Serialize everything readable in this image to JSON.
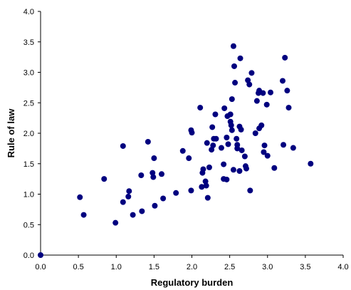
{
  "chart_data": {
    "type": "scatter",
    "title": "",
    "xlabel": "Regulatory burden",
    "ylabel": "Rule of law",
    "xlim": [
      0,
      4
    ],
    "ylim": [
      0,
      4
    ],
    "xticks": [
      "0.0",
      "0.5",
      "1.0",
      "1.5",
      "2.0",
      "2.5",
      "3.0",
      "3.5",
      "4.0"
    ],
    "yticks": [
      "0.0",
      "0.5",
      "1.0",
      "1.5",
      "2.0",
      "2.5",
      "3.0",
      "3.5",
      "4.0"
    ],
    "grid": false,
    "legend": "none",
    "marker_color": "#00007F",
    "points": [
      [
        0.0,
        0.0
      ],
      [
        0.52,
        0.95
      ],
      [
        0.57,
        0.66
      ],
      [
        0.84,
        1.25
      ],
      [
        0.99,
        0.53
      ],
      [
        1.09,
        1.79
      ],
      [
        1.09,
        0.87
      ],
      [
        1.16,
        0.96
      ],
      [
        1.17,
        1.05
      ],
      [
        1.22,
        0.66
      ],
      [
        1.33,
        1.31
      ],
      [
        1.34,
        0.72
      ],
      [
        1.42,
        1.86
      ],
      [
        1.48,
        1.35
      ],
      [
        1.49,
        1.28
      ],
      [
        1.5,
        1.59
      ],
      [
        1.51,
        0.81
      ],
      [
        1.6,
        1.33
      ],
      [
        1.62,
        0.93
      ],
      [
        1.79,
        1.02
      ],
      [
        1.88,
        1.71
      ],
      [
        1.96,
        1.59
      ],
      [
        1.99,
        2.05
      ],
      [
        2.0,
        2.01
      ],
      [
        1.99,
        1.06
      ],
      [
        2.11,
        2.42
      ],
      [
        2.13,
        1.12
      ],
      [
        2.14,
        1.35
      ],
      [
        2.15,
        1.41
      ],
      [
        2.18,
        1.21
      ],
      [
        2.19,
        1.14
      ],
      [
        2.21,
        0.94
      ],
      [
        2.2,
        1.84
      ],
      [
        2.23,
        1.44
      ],
      [
        2.26,
        1.73
      ],
      [
        2.27,
        2.1
      ],
      [
        2.28,
        1.8
      ],
      [
        2.29,
        1.91
      ],
      [
        2.31,
        2.31
      ],
      [
        2.32,
        1.91
      ],
      [
        2.39,
        1.76
      ],
      [
        2.42,
        1.49
      ],
      [
        2.42,
        1.25
      ],
      [
        2.43,
        2.41
      ],
      [
        2.46,
        1.24
      ],
      [
        2.46,
        1.93
      ],
      [
        2.47,
        2.28
      ],
      [
        2.48,
        1.82
      ],
      [
        2.51,
        2.31
      ],
      [
        2.51,
        2.19
      ],
      [
        2.52,
        2.13
      ],
      [
        2.53,
        2.56
      ],
      [
        2.53,
        2.05
      ],
      [
        2.55,
        1.4
      ],
      [
        2.55,
        3.43
      ],
      [
        2.56,
        3.1
      ],
      [
        2.57,
        2.83
      ],
      [
        2.59,
        1.91
      ],
      [
        2.6,
        1.75
      ],
      [
        2.6,
        1.81
      ],
      [
        2.63,
        2.11
      ],
      [
        2.64,
        3.23
      ],
      [
        2.63,
        1.38
      ],
      [
        2.65,
        2.06
      ],
      [
        2.66,
        1.72
      ],
      [
        2.7,
        1.62
      ],
      [
        2.71,
        1.46
      ],
      [
        2.72,
        1.42
      ],
      [
        2.74,
        2.87
      ],
      [
        2.76,
        2.8
      ],
      [
        2.77,
        1.06
      ],
      [
        2.79,
        2.99
      ],
      [
        2.84,
        2.0
      ],
      [
        2.86,
        2.53
      ],
      [
        2.88,
        2.66
      ],
      [
        2.89,
        2.7
      ],
      [
        2.89,
        2.08
      ],
      [
        2.92,
        2.13
      ],
      [
        2.94,
        2.66
      ],
      [
        2.95,
        1.69
      ],
      [
        2.96,
        1.8
      ],
      [
        2.99,
        2.47
      ],
      [
        3.0,
        1.63
      ],
      [
        3.04,
        2.67
      ],
      [
        3.09,
        1.43
      ],
      [
        3.2,
        2.86
      ],
      [
        3.21,
        1.81
      ],
      [
        3.23,
        3.24
      ],
      [
        3.26,
        2.7
      ],
      [
        3.28,
        2.42
      ],
      [
        3.34,
        1.76
      ],
      [
        3.57,
        1.5
      ]
    ]
  }
}
